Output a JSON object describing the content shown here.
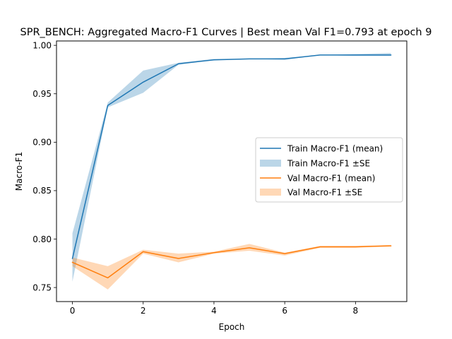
{
  "chart_data": {
    "type": "line",
    "title": "SPR_BENCH: Aggregated Macro-F1 Curves | Best mean Val F1=0.793 at epoch 9",
    "xlabel": "Epoch",
    "ylabel": "Macro-F1",
    "xlim": [
      -0.45,
      9.45
    ],
    "ylim": [
      0.7355,
      1.0045
    ],
    "x_ticks": [
      0,
      2,
      4,
      6,
      8
    ],
    "y_ticks": [
      0.75,
      0.8,
      0.85,
      0.9,
      0.95,
      1.0
    ],
    "y_tick_labels": [
      "0.75",
      "0.80",
      "0.85",
      "0.90",
      "0.95",
      "1.00"
    ],
    "grid": false,
    "legend_position": "center-right",
    "x": [
      0,
      1,
      2,
      3,
      4,
      5,
      6,
      7,
      8,
      9
    ],
    "series": [
      {
        "name": "Train Macro-F1 (mean)",
        "band_name": "Train Macro-F1 ±SE",
        "color": "#1f77b4",
        "band_color": "#1f77b4",
        "values": [
          0.78,
          0.938,
          0.962,
          0.981,
          0.985,
          0.986,
          0.986,
          0.99,
          0.99,
          0.99
        ],
        "lower": [
          0.756,
          0.936,
          0.951,
          0.98,
          0.985,
          0.986,
          0.985,
          0.99,
          0.989,
          0.989
        ],
        "upper": [
          0.806,
          0.941,
          0.974,
          0.982,
          0.986,
          0.986,
          0.987,
          0.99,
          0.991,
          0.992
        ]
      },
      {
        "name": "Val Macro-F1 (mean)",
        "band_name": "Val Macro-F1 ±SE",
        "color": "#ff7f0e",
        "band_color": "#ff7f0e",
        "values": [
          0.776,
          0.76,
          0.787,
          0.78,
          0.786,
          0.791,
          0.785,
          0.792,
          0.792,
          0.793
        ],
        "lower": [
          0.772,
          0.748,
          0.785,
          0.776,
          0.785,
          0.788,
          0.783,
          0.791,
          0.791,
          0.793
        ],
        "upper": [
          0.781,
          0.772,
          0.789,
          0.785,
          0.787,
          0.795,
          0.786,
          0.793,
          0.793,
          0.794
        ]
      }
    ]
  }
}
